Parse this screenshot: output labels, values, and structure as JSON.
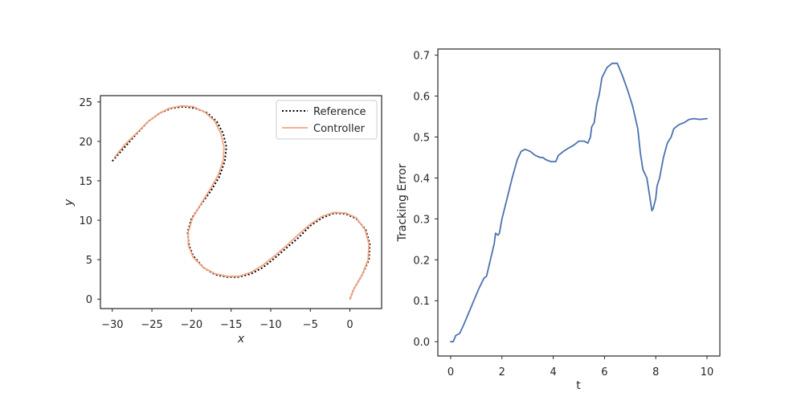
{
  "chart_data": [
    {
      "type": "line",
      "title": "",
      "xlabel": "x",
      "ylabel": "y",
      "xlim": [
        -31.5,
        4.0
      ],
      "ylim": [
        -1.2,
        25.8
      ],
      "xticks": [
        -30,
        -25,
        -20,
        -15,
        -10,
        -5,
        0
      ],
      "xtick_labels": [
        "−30",
        "−25",
        "−20",
        "−15",
        "−10",
        "−5",
        "0"
      ],
      "yticks": [
        0,
        5,
        10,
        15,
        20,
        25
      ],
      "ytick_labels": [
        "0",
        "5",
        "10",
        "15",
        "20",
        "25"
      ],
      "grid": false,
      "legend_position": "top-right",
      "series": [
        {
          "name": "Reference",
          "style": "dotted",
          "color": "#000000",
          "points": [
            [
              -30.0,
              17.5
            ],
            [
              -28.5,
              19.2
            ],
            [
              -27.0,
              20.9
            ],
            [
              -25.5,
              22.5
            ],
            [
              -24.0,
              23.6
            ],
            [
              -22.5,
              24.2
            ],
            [
              -21.0,
              24.4
            ],
            [
              -19.5,
              24.2
            ],
            [
              -18.0,
              23.6
            ],
            [
              -16.8,
              22.5
            ],
            [
              -16.0,
              21.0
            ],
            [
              -15.6,
              19.3
            ],
            [
              -15.8,
              17.5
            ],
            [
              -16.5,
              15.5
            ],
            [
              -17.5,
              13.8
            ],
            [
              -18.8,
              12.0
            ],
            [
              -20.0,
              10.2
            ],
            [
              -20.5,
              8.5
            ],
            [
              -20.3,
              6.8
            ],
            [
              -19.8,
              5.5
            ],
            [
              -18.5,
              4.0
            ],
            [
              -17.0,
              3.1
            ],
            [
              -15.5,
              2.8
            ],
            [
              -14.0,
              2.8
            ],
            [
              -12.5,
              3.2
            ],
            [
              -11.0,
              4.0
            ],
            [
              -9.5,
              5.2
            ],
            [
              -8.0,
              6.5
            ],
            [
              -6.5,
              7.8
            ],
            [
              -5.0,
              9.3
            ],
            [
              -3.5,
              10.3
            ],
            [
              -2.0,
              10.9
            ],
            [
              -0.5,
              10.8
            ],
            [
              0.8,
              10.2
            ],
            [
              2.0,
              8.8
            ],
            [
              2.5,
              7.0
            ],
            [
              2.4,
              5.0
            ],
            [
              1.5,
              3.0
            ],
            [
              0.5,
              1.3
            ],
            [
              0.0,
              0.0
            ]
          ]
        },
        {
          "name": "Controller",
          "style": "solid",
          "color": "#f4a582",
          "points": [
            [
              0.0,
              0.0
            ],
            [
              0.5,
              1.3
            ],
            [
              1.5,
              3.0
            ],
            [
              2.3,
              5.0
            ],
            [
              2.4,
              7.0
            ],
            [
              1.9,
              8.8
            ],
            [
              0.8,
              10.3
            ],
            [
              -0.5,
              10.9
            ],
            [
              -2.0,
              11.0
            ],
            [
              -3.5,
              10.5
            ],
            [
              -5.0,
              9.5
            ],
            [
              -6.5,
              8.2
            ],
            [
              -8.0,
              6.8
            ],
            [
              -9.5,
              5.5
            ],
            [
              -11.0,
              4.3
            ],
            [
              -12.5,
              3.4
            ],
            [
              -14.0,
              2.9
            ],
            [
              -15.5,
              2.9
            ],
            [
              -17.0,
              3.2
            ],
            [
              -18.5,
              4.0
            ],
            [
              -19.8,
              5.3
            ],
            [
              -20.4,
              6.8
            ],
            [
              -20.4,
              8.5
            ],
            [
              -19.9,
              10.2
            ],
            [
              -18.8,
              12.1
            ],
            [
              -17.6,
              14.0
            ],
            [
              -16.6,
              15.8
            ],
            [
              -16.0,
              17.6
            ],
            [
              -15.9,
              19.3
            ],
            [
              -16.3,
              21.0
            ],
            [
              -17.1,
              22.6
            ],
            [
              -18.3,
              23.7
            ],
            [
              -19.8,
              24.4
            ],
            [
              -21.3,
              24.5
            ],
            [
              -22.8,
              24.2
            ],
            [
              -24.2,
              23.5
            ],
            [
              -25.6,
              22.4
            ],
            [
              -27.0,
              21.0
            ],
            [
              -28.5,
              19.5
            ],
            [
              -29.7,
              18.0
            ]
          ]
        }
      ]
    },
    {
      "type": "line",
      "title": "",
      "xlabel": "t",
      "ylabel": "Tracking Error",
      "xlim": [
        -0.5,
        10.5
      ],
      "ylim": [
        -0.035,
        0.715
      ],
      "xticks": [
        0,
        2,
        4,
        6,
        8,
        10
      ],
      "xtick_labels": [
        "0",
        "2",
        "4",
        "6",
        "8",
        "10"
      ],
      "yticks": [
        0.0,
        0.1,
        0.2,
        0.3,
        0.4,
        0.5,
        0.6,
        0.7
      ],
      "ytick_labels": [
        "0.0",
        "0.1",
        "0.2",
        "0.3",
        "0.4",
        "0.5",
        "0.6",
        "0.7"
      ],
      "grid": false,
      "series": [
        {
          "color": "#4c72b0",
          "points": [
            [
              0.0,
              0.0
            ],
            [
              0.1,
              0.0
            ],
            [
              0.2,
              0.015
            ],
            [
              0.35,
              0.02
            ],
            [
              0.5,
              0.04
            ],
            [
              0.7,
              0.07
            ],
            [
              0.9,
              0.1
            ],
            [
              1.1,
              0.13
            ],
            [
              1.3,
              0.155
            ],
            [
              1.4,
              0.16
            ],
            [
              1.55,
              0.2
            ],
            [
              1.7,
              0.24
            ],
            [
              1.75,
              0.265
            ],
            [
              1.85,
              0.26
            ],
            [
              1.9,
              0.265
            ],
            [
              2.0,
              0.3
            ],
            [
              2.2,
              0.35
            ],
            [
              2.4,
              0.4
            ],
            [
              2.6,
              0.445
            ],
            [
              2.75,
              0.465
            ],
            [
              2.9,
              0.47
            ],
            [
              3.1,
              0.465
            ],
            [
              3.3,
              0.455
            ],
            [
              3.5,
              0.45
            ],
            [
              3.6,
              0.45
            ],
            [
              3.7,
              0.445
            ],
            [
              3.9,
              0.44
            ],
            [
              4.1,
              0.44
            ],
            [
              4.2,
              0.455
            ],
            [
              4.4,
              0.465
            ],
            [
              4.6,
              0.473
            ],
            [
              4.8,
              0.48
            ],
            [
              5.0,
              0.49
            ],
            [
              5.2,
              0.49
            ],
            [
              5.35,
              0.485
            ],
            [
              5.45,
              0.5
            ],
            [
              5.5,
              0.525
            ],
            [
              5.6,
              0.535
            ],
            [
              5.7,
              0.58
            ],
            [
              5.8,
              0.605
            ],
            [
              5.9,
              0.645
            ],
            [
              6.1,
              0.67
            ],
            [
              6.3,
              0.68
            ],
            [
              6.5,
              0.68
            ],
            [
              6.7,
              0.65
            ],
            [
              6.9,
              0.615
            ],
            [
              7.1,
              0.575
            ],
            [
              7.3,
              0.52
            ],
            [
              7.4,
              0.46
            ],
            [
              7.5,
              0.42
            ],
            [
              7.65,
              0.4
            ],
            [
              7.75,
              0.36
            ],
            [
              7.85,
              0.32
            ],
            [
              7.9,
              0.325
            ],
            [
              8.0,
              0.35
            ],
            [
              8.05,
              0.38
            ],
            [
              8.15,
              0.4
            ],
            [
              8.3,
              0.45
            ],
            [
              8.45,
              0.485
            ],
            [
              8.6,
              0.5
            ],
            [
              8.7,
              0.52
            ],
            [
              8.9,
              0.53
            ],
            [
              9.1,
              0.535
            ],
            [
              9.3,
              0.543
            ],
            [
              9.5,
              0.545
            ],
            [
              9.7,
              0.543
            ],
            [
              10.0,
              0.545
            ]
          ]
        }
      ]
    }
  ]
}
